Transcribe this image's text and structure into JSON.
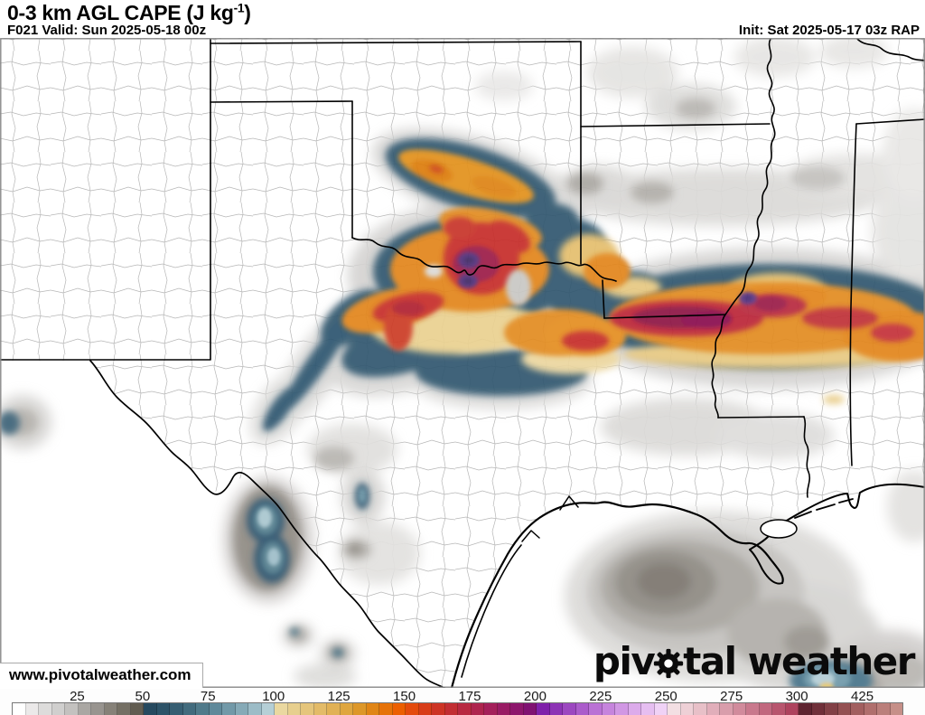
{
  "header": {
    "title_main": "0-3 km AGL CAPE (J kg",
    "title_sup": "-1",
    "title_end": ")",
    "forecast": "F021 Valid: Sun 2025-05-18 00z",
    "init": "Init: Sat 2025-05-17 03z RAP"
  },
  "map": {
    "watermark": "www.pivotalweather.com",
    "logo_pre": "piv",
    "logo_post": "tal weather"
  },
  "colorbar": {
    "ticks": [
      25,
      50,
      75,
      100,
      125,
      150,
      175,
      200,
      225,
      250,
      275,
      300,
      425
    ],
    "units_per_cell_low": 5,
    "units_per_cell_high": 25,
    "high_start_value": 300,
    "cells": [
      "#ffffff",
      "#ebe9e9",
      "#dddcdb",
      "#d0cfce",
      "#c3c1bf",
      "#aaa7a3",
      "#98948f",
      "#868178",
      "#746f64",
      "#615c51",
      "#26495f",
      "#2d5368",
      "#365e72",
      "#426b7d",
      "#507a8a",
      "#60899a",
      "#7299a8",
      "#86aab7",
      "#9cbcc7",
      "#b5cfd6",
      "#ead8a0",
      "#e7cf8e",
      "#e5c57b",
      "#e3bb68",
      "#e1b155",
      "#dfa63f",
      "#dd9729",
      "#e08516",
      "#e67208",
      "#ec5f01",
      "#e44b0d",
      "#d83d19",
      "#cd3425",
      "#c22e33",
      "#b82941",
      "#ae244e",
      "#a41f5a",
      "#991b64",
      "#8d166c",
      "#801172",
      "#7f20aa",
      "#8d33b5",
      "#9c47c0",
      "#ab5ccb",
      "#ba71d5",
      "#c684dd",
      "#d197e4",
      "#dcabeb",
      "#e6bef1",
      "#f0d2f6",
      "#f3dfe3",
      "#eed0d6",
      "#e8c0c8",
      "#e1aeba",
      "#d99dab",
      "#d18b9c",
      "#c9798d",
      "#c1677e",
      "#b8556e",
      "#ae435e",
      "#5f2430",
      "#70303a",
      "#824046",
      "#945052",
      "#a25f5f",
      "#b06f6d",
      "#bb7f7b",
      "#c68f88"
    ]
  }
}
